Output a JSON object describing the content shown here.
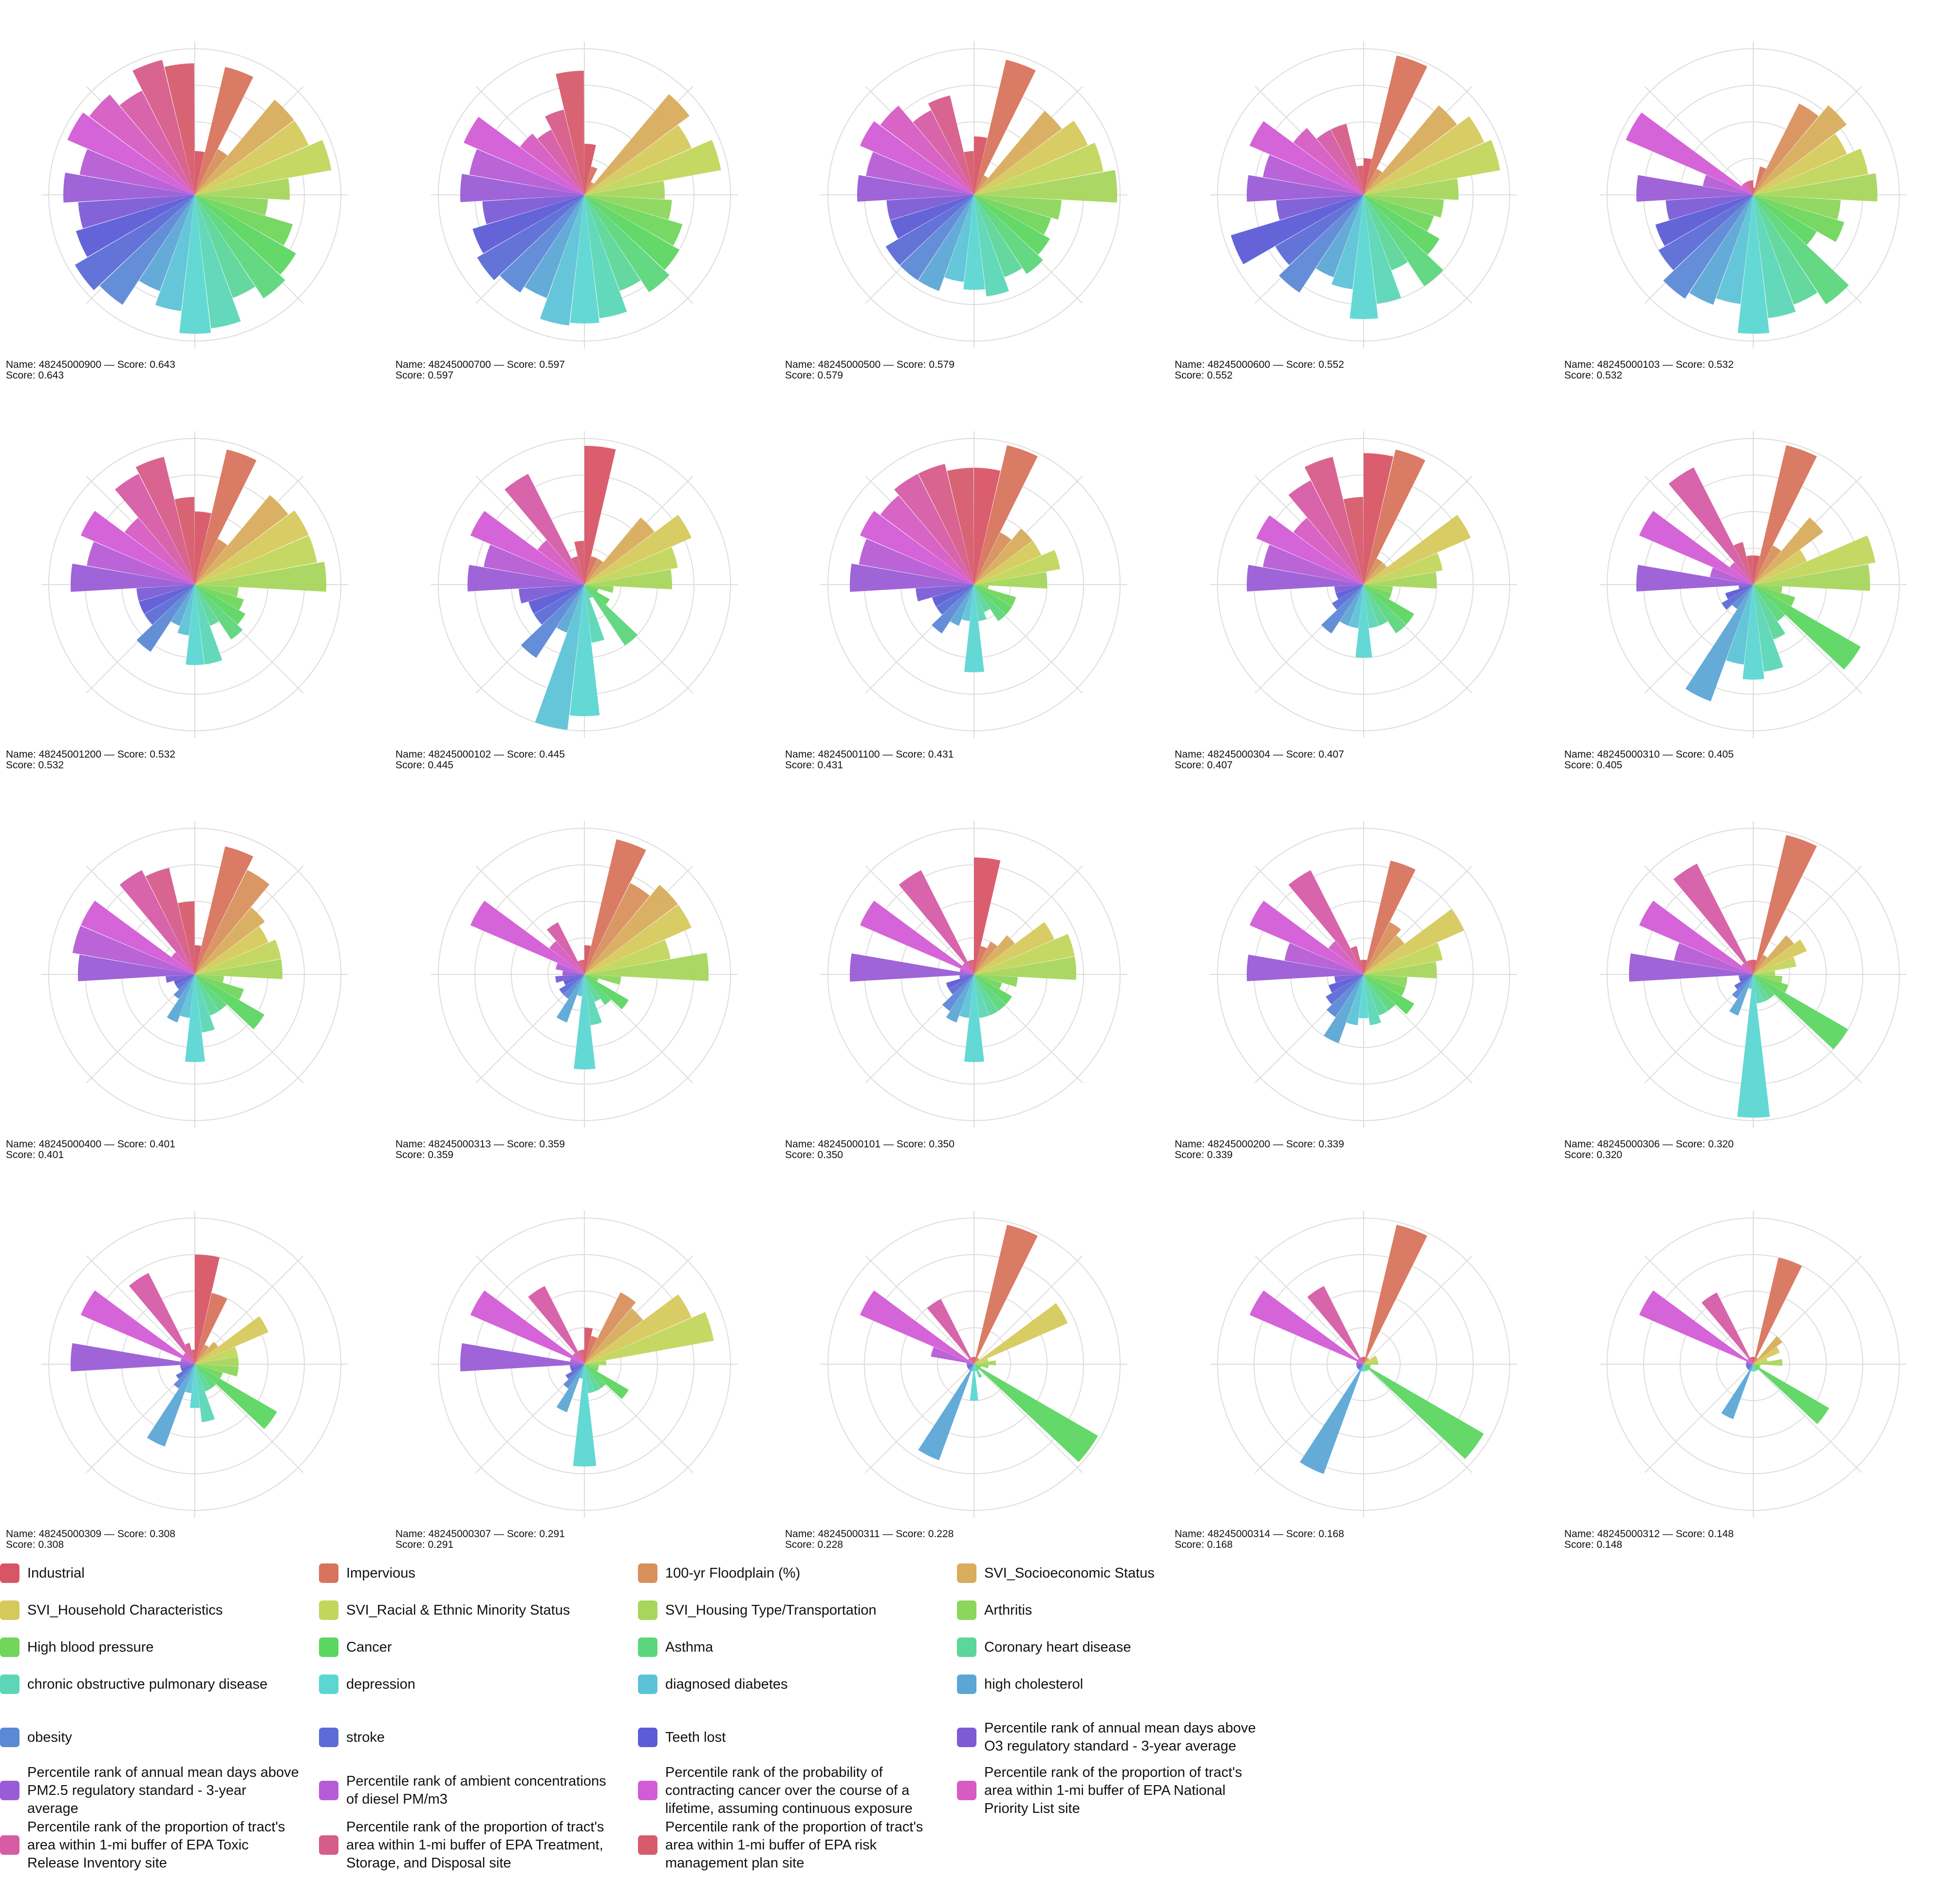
{
  "chart_data": {
    "type": "polar_bar",
    "grid": true,
    "legend_position": "bottom",
    "radial_range": [
      0,
      1
    ],
    "categories": [
      {
        "label": "Industrial",
        "color": "#d85566"
      },
      {
        "label": "Impervious",
        "color": "#d8745d"
      },
      {
        "label": "100-yr Floodplain (%)",
        "color": "#d8905c"
      },
      {
        "label": "SVI_Socioeconomic Status",
        "color": "#d8ad5c"
      },
      {
        "label": "SVI_Household Characteristics",
        "color": "#d6c95c"
      },
      {
        "label": "SVI_Racial & Ethnic Minority Status",
        "color": "#c3d65c"
      },
      {
        "label": "SVI_Housing Type/Transportation",
        "color": "#a6d65c"
      },
      {
        "label": "Arthritis",
        "color": "#8cd65c"
      },
      {
        "label": "High blood pressure",
        "color": "#70d65c"
      },
      {
        "label": "Cancer",
        "color": "#5cd661"
      },
      {
        "label": "Asthma",
        "color": "#5cd67c"
      },
      {
        "label": "Coronary heart disease",
        "color": "#5cd699"
      },
      {
        "label": "chronic obstructive pulmonary disease",
        "color": "#5cd6b6"
      },
      {
        "label": "depression",
        "color": "#5cd6d2"
      },
      {
        "label": "diagnosed diabetes",
        "color": "#5cc3d6"
      },
      {
        "label": "high cholesterol",
        "color": "#5ca6d6"
      },
      {
        "label": "obesity",
        "color": "#5c89d6"
      },
      {
        "label": "stroke",
        "color": "#5c6cd6"
      },
      {
        "label": "Teeth lost",
        "color": "#5c5cd6"
      },
      {
        "label": "Percentile rank of annual mean days above O3 regulatory standard - 3-year average",
        "color": "#7c5cd6"
      },
      {
        "label": "Percentile rank of annual mean days above PM2.5 regulatory standard - 3-year average",
        "color": "#995cd6"
      },
      {
        "label": "Percentile rank of ambient concentrations of diesel PM/m3",
        "color": "#b65cd6"
      },
      {
        "label": "Percentile rank of the probability of contracting cancer over the course of a lifetime, assuming continuous exposure",
        "color": "#d25cd6"
      },
      {
        "label": "Percentile rank of the proportion of tract's area within 1-mi buffer of EPA National Priority List site",
        "color": "#d65cc3"
      },
      {
        "label": "Percentile rank of the proportion of tract's area within 1-mi buffer of EPA Toxic Release Inventory site",
        "color": "#d65ca6"
      },
      {
        "label": "Percentile rank of the proportion of tract's area within 1-mi buffer of EPA Treatment, Storage, and Disposal site",
        "color": "#d65c89"
      },
      {
        "label": "Percentile rank of the proportion of tract's area within 1-mi buffer of EPA risk management plan site",
        "color": "#d65c6c"
      }
    ],
    "panels": [
      {
        "name": "48245000900",
        "score": "0.643",
        "line1": "Name: 48245000900 — Score: 0.643",
        "line2": "Score: 0.643",
        "values": [
          0.3,
          0.9,
          0.35,
          0.85,
          0.85,
          0.95,
          0.65,
          0.5,
          0.7,
          0.8,
          0.85,
          0.75,
          0.92,
          0.95,
          0.8,
          0.7,
          0.9,
          0.95,
          0.85,
          0.8,
          0.9,
          0.8,
          0.95,
          0.9,
          0.8,
          0.95,
          0.9
        ]
      },
      {
        "name": "48245000700",
        "score": "0.597",
        "line1": "Name: 48245000700 — Score: 0.597",
        "line2": "Score: 0.597",
        "values": [
          0.35,
          0.2,
          0.1,
          0.9,
          0.8,
          0.95,
          0.55,
          0.6,
          0.7,
          0.75,
          0.8,
          0.7,
          0.85,
          0.88,
          0.9,
          0.75,
          0.8,
          0.85,
          0.8,
          0.7,
          0.85,
          0.8,
          0.9,
          0.55,
          0.5,
          0.6,
          0.85
        ]
      },
      {
        "name": "48245000500",
        "score": "0.579",
        "line1": "Name: 48245000500 — Score: 0.579",
        "line2": "Score: 0.579",
        "values": [
          0.4,
          0.95,
          0.15,
          0.75,
          0.85,
          0.9,
          0.98,
          0.6,
          0.55,
          0.6,
          0.65,
          0.6,
          0.7,
          0.65,
          0.6,
          0.7,
          0.7,
          0.7,
          0.6,
          0.6,
          0.8,
          0.75,
          0.85,
          0.8,
          0.65,
          0.7,
          0.3
        ]
      },
      {
        "name": "48245000600",
        "score": "0.552",
        "line1": "Name: 48245000600 — Score: 0.552",
        "line2": "Score: 0.552",
        "values": [
          0.25,
          0.98,
          0.2,
          0.8,
          0.9,
          0.95,
          0.65,
          0.55,
          0.5,
          0.6,
          0.75,
          0.55,
          0.75,
          0.85,
          0.65,
          0.6,
          0.8,
          0.7,
          0.95,
          0.6,
          0.8,
          0.7,
          0.85,
          0.6,
          0.5,
          0.5,
          0.2
        ]
      },
      {
        "name": "48245000103",
        "score": "0.532",
        "line1": "Name: 48245000103 — Score: 0.532",
        "line2": "Score: 0.532",
        "values": [
          0.05,
          0.2,
          0.7,
          0.8,
          0.7,
          0.8,
          0.85,
          0.6,
          0.65,
          0.5,
          0.9,
          0.8,
          0.85,
          0.95,
          0.75,
          0.8,
          0.85,
          0.75,
          0.7,
          0.6,
          0.8,
          0.35,
          0.95,
          0.1,
          0.1,
          0.1,
          0.1
        ]
      },
      {
        "name": "48245001200",
        "score": "0.532",
        "line1": "Name: 48245001200 — Score: 0.532",
        "line2": "Score: 0.532",
        "values": [
          0.5,
          0.95,
          0.35,
          0.8,
          0.85,
          0.85,
          0.9,
          0.3,
          0.35,
          0.4,
          0.45,
          0.3,
          0.55,
          0.55,
          0.35,
          0.3,
          0.55,
          0.4,
          0.4,
          0.4,
          0.85,
          0.75,
          0.85,
          0.6,
          0.85,
          0.9,
          0.6
        ]
      },
      {
        "name": "48245000102",
        "score": "0.445",
        "line1": "Name: 48245000102 — Score: 0.445",
        "line2": "Score: 0.445",
        "values": [
          0.95,
          0.2,
          0.2,
          0.6,
          0.8,
          0.65,
          0.6,
          0.2,
          0.1,
          0.2,
          0.5,
          0.1,
          0.4,
          0.9,
          1.0,
          0.35,
          0.6,
          0.4,
          0.4,
          0.45,
          0.8,
          0.7,
          0.85,
          0.4,
          0.85,
          0.2,
          0.3
        ]
      },
      {
        "name": "48245001100",
        "score": "0.431",
        "line1": "Name: 48245001100 — Score: 0.431",
        "line2": "Score: 0.431",
        "values": [
          0.8,
          0.98,
          0.4,
          0.5,
          0.5,
          0.6,
          0.5,
          0.1,
          0.3,
          0.3,
          0.3,
          0.2,
          0.25,
          0.6,
          0.25,
          0.3,
          0.4,
          0.3,
          0.3,
          0.4,
          0.85,
          0.8,
          0.85,
          0.8,
          0.85,
          0.85,
          0.8
        ]
      },
      {
        "name": "48245000304",
        "score": "0.407",
        "line1": "Name: 48245000304 — Score: 0.407",
        "line2": "Score: 0.407",
        "values": [
          0.9,
          0.95,
          0.2,
          0.2,
          0.8,
          0.55,
          0.5,
          0.2,
          0.2,
          0.4,
          0.4,
          0.3,
          0.3,
          0.5,
          0.3,
          0.3,
          0.4,
          0.25,
          0.2,
          0.2,
          0.8,
          0.7,
          0.8,
          0.6,
          0.8,
          0.9,
          0.6
        ]
      },
      {
        "name": "48245000310",
        "score": "0.405",
        "line1": "Name: 48245000310 — Score: 0.405",
        "line2": "Score: 0.405",
        "values": [
          0.2,
          0.98,
          0.3,
          0.6,
          0.4,
          0.85,
          0.8,
          0.2,
          0.3,
          0.85,
          0.3,
          0.4,
          0.6,
          0.65,
          0.55,
          0.85,
          0.2,
          0.25,
          0.2,
          0.1,
          0.8,
          0.3,
          0.85,
          0.2,
          0.9,
          0.3,
          0.2
        ]
      },
      {
        "name": "48245000400",
        "score": "0.401",
        "line1": "Name: 48245000400 — Score: 0.401",
        "line2": "Score: 0.401",
        "values": [
          0.2,
          0.9,
          0.8,
          0.6,
          0.55,
          0.6,
          0.6,
          0.2,
          0.35,
          0.55,
          0.3,
          0.3,
          0.4,
          0.6,
          0.3,
          0.35,
          0.2,
          0.15,
          0.15,
          0.2,
          0.8,
          0.85,
          0.85,
          0.2,
          0.8,
          0.75,
          0.5
        ]
      },
      {
        "name": "48245000313",
        "score": "0.359",
        "line1": "Name: 48245000313 — Score: 0.359",
        "line2": "Score: 0.359",
        "values": [
          0.2,
          0.95,
          0.7,
          0.8,
          0.8,
          0.6,
          0.85,
          0.25,
          0.1,
          0.35,
          0.25,
          0.2,
          0.35,
          0.65,
          0.15,
          0.35,
          0.2,
          0.2,
          0.15,
          0.2,
          0.15,
          0.2,
          0.85,
          0.3,
          0.4,
          0.1,
          0.1
        ]
      },
      {
        "name": "48245000101",
        "score": "0.350",
        "line1": "Name: 48245000101 — Score: 0.350",
        "line2": "Score: 0.350",
        "values": [
          0.8,
          0.2,
          0.25,
          0.35,
          0.6,
          0.7,
          0.7,
          0.3,
          0.2,
          0.3,
          0.3,
          0.3,
          0.3,
          0.6,
          0.3,
          0.35,
          0.3,
          0.2,
          0.2,
          0.1,
          0.85,
          0.1,
          0.85,
          0.1,
          0.8,
          0.1,
          0.1
        ]
      },
      {
        "name": "48245000200",
        "score": "0.339",
        "line1": "Name: 48245000200 — Score: 0.339",
        "line2": "Score: 0.339",
        "values": [
          0.1,
          0.8,
          0.4,
          0.35,
          0.75,
          0.55,
          0.5,
          0.3,
          0.3,
          0.4,
          0.3,
          0.3,
          0.35,
          0.3,
          0.35,
          0.5,
          0.35,
          0.3,
          0.25,
          0.2,
          0.8,
          0.55,
          0.85,
          0.3,
          0.8,
          0.2,
          0.1
        ]
      },
      {
        "name": "48245000306",
        "score": "0.320",
        "line1": "Name: 48245000306 — Score: 0.320",
        "line2": "Score: 0.320",
        "values": [
          0.1,
          0.98,
          0.15,
          0.35,
          0.4,
          0.3,
          0.15,
          0.2,
          0.25,
          0.75,
          0.2,
          0.2,
          0.2,
          0.98,
          0.1,
          0.3,
          0.2,
          0.15,
          0.1,
          0.1,
          0.85,
          0.55,
          0.85,
          0.1,
          0.85,
          0.1,
          0.1
        ]
      },
      {
        "name": "48245000309",
        "score": "0.308",
        "line1": "Name: 48245000309 — Score: 0.308",
        "line2": "Score: 0.308",
        "values": [
          0.75,
          0.5,
          0.15,
          0.2,
          0.55,
          0.3,
          0.3,
          0.3,
          0.2,
          0.65,
          0.2,
          0.2,
          0.4,
          0.3,
          0.2,
          0.6,
          0.2,
          0.15,
          0.1,
          0.1,
          0.85,
          0.1,
          0.85,
          0.1,
          0.7,
          0.15,
          0.1
        ]
      },
      {
        "name": "48245000307",
        "score": "0.291",
        "line1": "Name: 48245000307 — Score: 0.291",
        "line2": "Score: 0.291",
        "values": [
          0.25,
          0.2,
          0.55,
          0.5,
          0.8,
          0.9,
          0.15,
          0.1,
          0.1,
          0.35,
          0.2,
          0.2,
          0.2,
          0.7,
          0.1,
          0.35,
          0.2,
          0.15,
          0.1,
          0.1,
          0.85,
          0.1,
          0.85,
          0.1,
          0.6,
          0.1,
          0.1
        ]
      },
      {
        "name": "48245000311",
        "score": "0.228",
        "line1": "Name: 48245000311 — Score: 0.228",
        "line2": "Score: 0.228",
        "values": [
          0.05,
          0.98,
          0.05,
          0.05,
          0.7,
          0.1,
          0.15,
          0.1,
          0.05,
          0.98,
          0.05,
          0.1,
          0.05,
          0.25,
          0.05,
          0.7,
          0.05,
          0.05,
          0.05,
          0.05,
          0.05,
          0.3,
          0.85,
          0.05,
          0.5,
          0.05,
          0.05
        ]
      },
      {
        "name": "48245000314",
        "score": "0.168",
        "line1": "Name: 48245000314 — Score: 0.168",
        "line2": "Score: 0.168",
        "values": [
          0.05,
          0.98,
          0.05,
          0.05,
          0.1,
          0.1,
          0.1,
          0.05,
          0.05,
          0.95,
          0.05,
          0.05,
          0.05,
          0.05,
          0.05,
          0.8,
          0.05,
          0.05,
          0.05,
          0.05,
          0.05,
          0.05,
          0.85,
          0.05,
          0.6,
          0.05,
          0.05
        ]
      },
      {
        "name": "48245000312",
        "score": "0.148",
        "line1": "Name: 48245000312 — Score: 0.148",
        "line2": "Score: 0.148",
        "values": [
          0.05,
          0.75,
          0.05,
          0.25,
          0.2,
          0.1,
          0.2,
          0.05,
          0.05,
          0.6,
          0.05,
          0.05,
          0.05,
          0.05,
          0.05,
          0.4,
          0.05,
          0.05,
          0.05,
          0.05,
          0.05,
          0.05,
          0.85,
          0.05,
          0.55,
          0.05,
          0.05
        ]
      }
    ]
  }
}
